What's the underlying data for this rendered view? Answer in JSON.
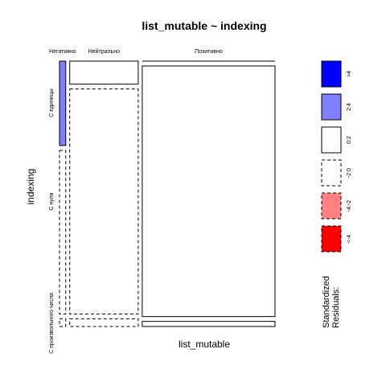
{
  "chart_data": {
    "type": "mosaic",
    "title": "list_mutable ~ indexing",
    "xlabel": "list_mutable",
    "ylabel": "indexing",
    "columns": [
      "Негативно",
      "Нейтрально",
      "Позитивно"
    ],
    "rows": [
      "С единицы",
      "С нуля",
      "С произвольного числа"
    ],
    "column_shares": [
      0.03,
      0.33,
      0.64
    ],
    "cell_shares": [
      [
        0.33,
        0.64,
        0.03
      ],
      [
        0.09,
        0.88,
        0.03
      ],
      [
        0.0,
        0.98,
        0.02
      ]
    ],
    "residual_classes": [
      [
        "2:4",
        "-2:0",
        "-2:0"
      ],
      [
        "0:2",
        "-2:0",
        "-2:0"
      ],
      [
        "0:2",
        "0:2",
        "0:2"
      ]
    ],
    "legend": {
      "title": "Standardized Residuals:",
      "items": [
        {
          "label": ">4",
          "fill": "#0000ff",
          "dashed": false
        },
        {
          "label": "2:4",
          "fill": "#8080ff",
          "dashed": false
        },
        {
          "label": "0:2",
          "fill": "#ffffff",
          "dashed": false
        },
        {
          "label": "-2:0",
          "fill": "#ffffff",
          "dashed": true
        },
        {
          "label": "-4:-2",
          "fill": "#ff8080",
          "dashed": true
        },
        {
          "label": "<-4",
          "fill": "#ff0000",
          "dashed": true
        }
      ]
    }
  }
}
